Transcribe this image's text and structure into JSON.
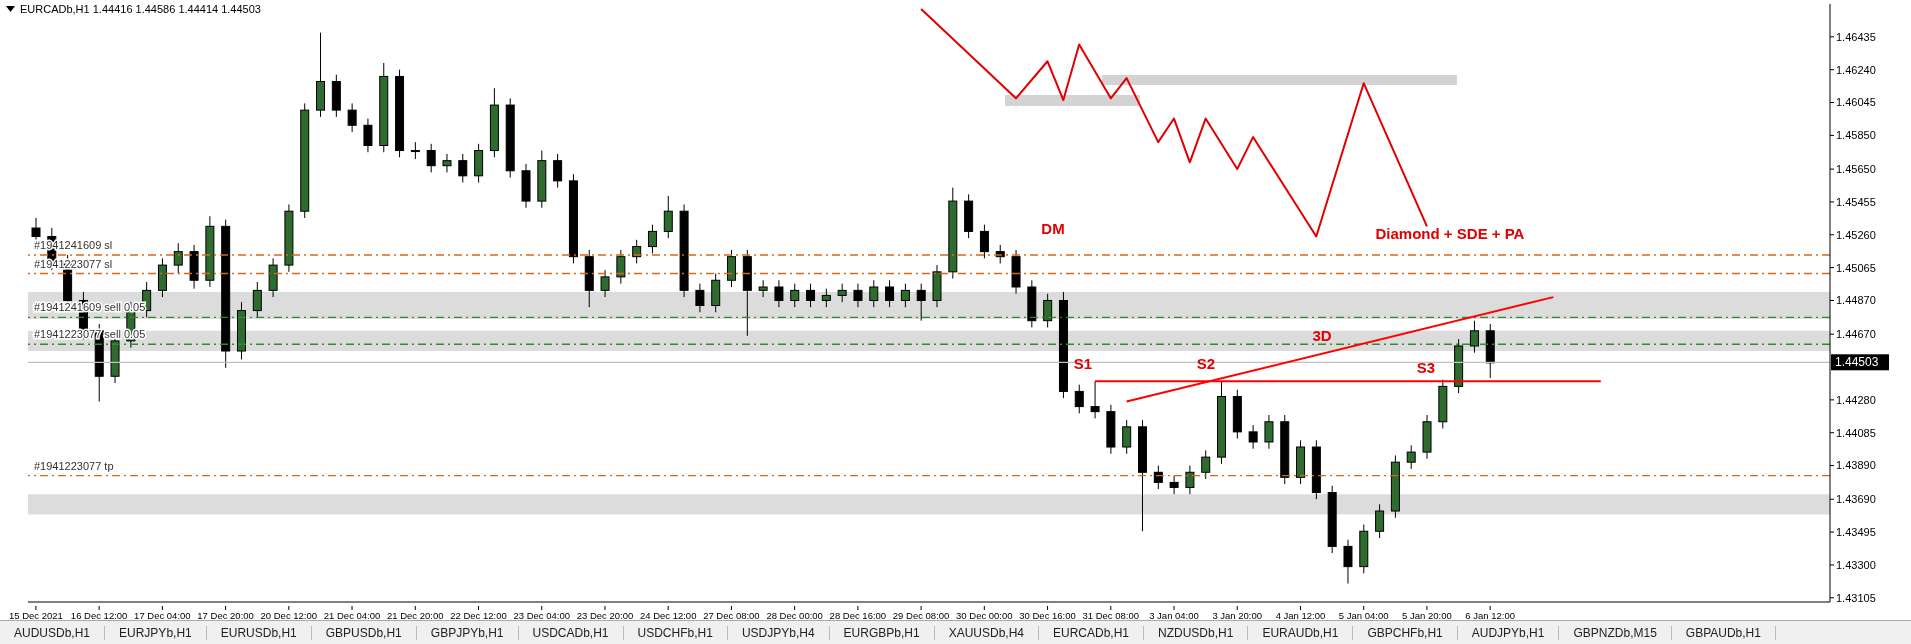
{
  "chart_data": {
    "type": "candlestick",
    "title": "EURCADb,H1  1.44416 1.44586 1.44414 1.44503",
    "categories": [
      "15 Dec 2021",
      null,
      null,
      null,
      "16 Dec 12:00",
      null,
      null,
      null,
      "17 Dec 04:00",
      null,
      null,
      null,
      "17 Dec 20:00",
      null,
      null,
      null,
      "20 Dec 12:00",
      null,
      null,
      null,
      "21 Dec 04:00",
      null,
      null,
      null,
      "21 Dec 20:00",
      null,
      null,
      null,
      "22 Dec 12:00",
      null,
      null,
      null,
      "23 Dec 04:00",
      null,
      null,
      null,
      "23 Dec 20:00",
      null,
      null,
      null,
      "24 Dec 12:00",
      null,
      null,
      null,
      "27 Dec 08:00",
      null,
      null,
      null,
      "28 Dec 00:00",
      null,
      null,
      null,
      "28 Dec 16:00",
      null,
      null,
      null,
      "29 Dec 08:00",
      null,
      null,
      null,
      "30 Dec 00:00",
      null,
      null,
      null,
      "30 Dec 16:00",
      null,
      null,
      null,
      "31 Dec 08:00",
      null,
      null,
      null,
      "3 Jan 04:00",
      null,
      null,
      null,
      "3 Jan 20:00",
      null,
      null,
      null,
      "4 Jan 12:00",
      null,
      null,
      null,
      "5 Jan 04:00",
      null,
      null,
      null,
      "5 Jan 20:00",
      null,
      null,
      null,
      "6 Jan 12:00",
      null,
      null,
      null,
      null,
      null,
      null,
      null,
      null,
      null,
      null,
      null,
      null,
      null,
      null,
      null,
      null,
      null,
      null,
      null,
      null,
      null
    ],
    "ohlc": [
      [
        1.453,
        1.4536,
        1.452,
        1.4525
      ],
      [
        1.4525,
        1.453,
        1.4505,
        1.451
      ],
      [
        1.451,
        1.4514,
        1.4482,
        1.4487
      ],
      [
        1.4487,
        1.4492,
        1.4464,
        1.4469
      ],
      [
        1.4469,
        1.4473,
        1.4427,
        1.4442
      ],
      [
        1.4442,
        1.4468,
        1.4438,
        1.4463
      ],
      [
        1.4463,
        1.4486,
        1.4459,
        1.4481
      ],
      [
        1.4481,
        1.4498,
        1.4477,
        1.4493
      ],
      [
        1.4493,
        1.4512,
        1.4489,
        1.4508
      ],
      [
        1.4508,
        1.4521,
        1.4503,
        1.4516
      ],
      [
        1.4516,
        1.452,
        1.4494,
        1.4499
      ],
      [
        1.4499,
        1.4537,
        1.4495,
        1.4531
      ],
      [
        1.4531,
        1.4535,
        1.4447,
        1.4457
      ],
      [
        1.4457,
        1.4486,
        1.4452,
        1.4481
      ],
      [
        1.4481,
        1.4498,
        1.4477,
        1.4493
      ],
      [
        1.4493,
        1.4512,
        1.4489,
        1.4508
      ],
      [
        1.4508,
        1.4544,
        1.4504,
        1.454
      ],
      [
        1.454,
        1.4604,
        1.4536,
        1.46
      ],
      [
        1.46,
        1.4646,
        1.4596,
        1.4617
      ],
      [
        1.4617,
        1.4621,
        1.4596,
        1.46
      ],
      [
        1.46,
        1.4604,
        1.4587,
        1.4591
      ],
      [
        1.4591,
        1.4595,
        1.4575,
        1.4579
      ],
      [
        1.4579,
        1.4628,
        1.4575,
        1.462
      ],
      [
        1.462,
        1.4624,
        1.4572,
        1.4576
      ],
      [
        1.4576,
        1.4581,
        1.4571,
        1.4576
      ],
      [
        1.4576,
        1.458,
        1.4563,
        1.4567
      ],
      [
        1.4567,
        1.4574,
        1.4563,
        1.457
      ],
      [
        1.457,
        1.4574,
        1.4557,
        1.4561
      ],
      [
        1.4561,
        1.458,
        1.4557,
        1.4576
      ],
      [
        1.4576,
        1.4613,
        1.4572,
        1.4603
      ],
      [
        1.4603,
        1.4607,
        1.456,
        1.4564
      ],
      [
        1.4564,
        1.4568,
        1.4542,
        1.4546
      ],
      [
        1.4546,
        1.4576,
        1.4542,
        1.457
      ],
      [
        1.457,
        1.4574,
        1.4554,
        1.4558
      ],
      [
        1.4558,
        1.4562,
        1.4509,
        1.4513
      ],
      [
        1.4513,
        1.4517,
        1.4483,
        1.4493
      ],
      [
        1.4493,
        1.4505,
        1.4489,
        1.4501
      ],
      [
        1.4501,
        1.4517,
        1.4497,
        1.4513
      ],
      [
        1.4513,
        1.4523,
        1.4509,
        1.4519
      ],
      [
        1.4519,
        1.4532,
        1.4515,
        1.4528
      ],
      [
        1.4528,
        1.4549,
        1.4524,
        1.454
      ],
      [
        1.454,
        1.4544,
        1.4489,
        1.4493
      ],
      [
        1.4493,
        1.4497,
        1.448,
        1.4484
      ],
      [
        1.4484,
        1.4503,
        1.448,
        1.4499
      ],
      [
        1.4499,
        1.4517,
        1.4495,
        1.4513
      ],
      [
        1.4513,
        1.4517,
        1.4466,
        1.4493
      ],
      [
        1.4493,
        1.4499,
        1.4489,
        1.4495
      ],
      [
        1.4495,
        1.4499,
        1.4483,
        1.4487
      ],
      [
        1.4487,
        1.4497,
        1.4483,
        1.4493
      ],
      [
        1.4493,
        1.4497,
        1.4483,
        1.4487
      ],
      [
        1.4487,
        1.4494,
        1.4483,
        1.449
      ],
      [
        1.449,
        1.4497,
        1.4486,
        1.4493
      ],
      [
        1.4493,
        1.4497,
        1.4483,
        1.4487
      ],
      [
        1.4487,
        1.4499,
        1.4483,
        1.4495
      ],
      [
        1.4495,
        1.4499,
        1.4483,
        1.4487
      ],
      [
        1.4487,
        1.4497,
        1.4483,
        1.4493
      ],
      [
        1.4493,
        1.4497,
        1.4475,
        1.4487
      ],
      [
        1.4487,
        1.4508,
        1.4483,
        1.4504
      ],
      [
        1.4504,
        1.4554,
        1.45,
        1.4546
      ],
      [
        1.4546,
        1.455,
        1.4524,
        1.4528
      ],
      [
        1.4528,
        1.4532,
        1.4512,
        1.4516
      ],
      [
        1.4516,
        1.452,
        1.4509,
        1.4513
      ],
      [
        1.4513,
        1.4517,
        1.4491,
        1.4495
      ],
      [
        1.4495,
        1.4499,
        1.4471,
        1.4475
      ],
      [
        1.4475,
        1.4491,
        1.4471,
        1.4487
      ],
      [
        1.4487,
        1.4492,
        1.4429,
        1.4433
      ],
      [
        1.4433,
        1.4437,
        1.442,
        1.4424
      ],
      [
        1.4424,
        1.4439,
        1.4417,
        1.4421
      ],
      [
        1.4421,
        1.4425,
        1.4396,
        1.44
      ],
      [
        1.44,
        1.4416,
        1.4396,
        1.4412
      ],
      [
        1.4412,
        1.4416,
        1.435,
        1.4385
      ],
      [
        1.4385,
        1.4389,
        1.4375,
        1.4379
      ],
      [
        1.4379,
        1.4383,
        1.4372,
        1.4376
      ],
      [
        1.4376,
        1.4389,
        1.4372,
        1.4385
      ],
      [
        1.4385,
        1.4398,
        1.4381,
        1.4394
      ],
      [
        1.4394,
        1.4439,
        1.439,
        1.443
      ],
      [
        1.443,
        1.4434,
        1.4405,
        1.4409
      ],
      [
        1.4409,
        1.4413,
        1.4399,
        1.4403
      ],
      [
        1.4403,
        1.4419,
        1.4399,
        1.4415
      ],
      [
        1.4415,
        1.4419,
        1.4378,
        1.4382
      ],
      [
        1.4382,
        1.4404,
        1.4378,
        1.44
      ],
      [
        1.44,
        1.4404,
        1.4369,
        1.4373
      ],
      [
        1.4373,
        1.4377,
        1.4337,
        1.4341
      ],
      [
        1.4341,
        1.4345,
        1.4319,
        1.4329
      ],
      [
        1.4329,
        1.4354,
        1.4325,
        1.435
      ],
      [
        1.435,
        1.4366,
        1.4346,
        1.4362
      ],
      [
        1.4362,
        1.4395,
        1.4358,
        1.4391
      ],
      [
        1.4391,
        1.4401,
        1.4387,
        1.4397
      ],
      [
        1.4397,
        1.4419,
        1.4393,
        1.4415
      ],
      [
        1.4415,
        1.444,
        1.4411,
        1.4436
      ],
      [
        1.4436,
        1.4464,
        1.4432,
        1.446
      ],
      [
        1.446,
        1.4475,
        1.4456,
        1.4469
      ],
      [
        1.4469,
        1.4473,
        1.4441,
        1.445
      ],
      null,
      null,
      null,
      null,
      null,
      null,
      null,
      null,
      null,
      null,
      null,
      null,
      null,
      null,
      null,
      null,
      null,
      null,
      null,
      null,
      null
    ],
    "ylim": [
      1.4308,
      1.4663
    ],
    "yticks": [
      1.46435,
      {
        "value": 1.4624,
        "label": "1.46240"
      },
      1.46045,
      {
        "value": 1.4585,
        "label": "1.45850"
      },
      {
        "value": 1.4565,
        "label": "1.45650"
      },
      1.45455,
      {
        "value": 1.4526,
        "label": "1.45260"
      },
      1.45065,
      {
        "value": 1.4487,
        "label": "1.44870"
      },
      {
        "value": 1.4467,
        "label": "1.44670"
      },
      {
        "value": 1.4428,
        "label": "1.44280"
      },
      1.44085,
      {
        "value": 1.4389,
        "label": "1.43890"
      },
      {
        "value": 1.4369,
        "label": "1.43690"
      },
      1.43495,
      {
        "value": 1.433,
        "label": "1.43300"
      },
      1.43105
    ],
    "series": [
      {
        "type": "line",
        "color": "#ff0000",
        "values": [
          null,
          null,
          null,
          null,
          null,
          null,
          null,
          null,
          null,
          null,
          null,
          null,
          null,
          null,
          null,
          null,
          null,
          null,
          null,
          null,
          null,
          null,
          null,
          null,
          null,
          null,
          null,
          null,
          null,
          null,
          null,
          null,
          null,
          null,
          null,
          null,
          null,
          null,
          null,
          null,
          null,
          null,
          null,
          null,
          null,
          null,
          null,
          null,
          null,
          null,
          null,
          null,
          null,
          null,
          null,
          null,
          null,
          null,
          null,
          null,
          null,
          null,
          null,
          null,
          null,
          null,
          null,
          1.4439,
          1.4439,
          1.4439,
          1.4439,
          1.4439,
          1.4439,
          1.4439,
          1.4439,
          1.4439,
          1.4439,
          1.4439,
          1.4439,
          1.4439,
          1.4439,
          1.4439,
          1.4439,
          1.4439,
          1.4439,
          1.4439,
          1.4439,
          1.4439,
          1.4439,
          1.4439,
          1.4439,
          1.4439,
          1.4439,
          1.4439,
          1.4439,
          1.4439,
          1.4439,
          1.4439,
          1.4439,
          1.4439,
          null,
          null,
          null,
          null,
          null,
          null,
          null,
          null,
          null,
          null,
          null,
          null,
          null,
          null
        ]
      },
      {
        "type": "line",
        "color": "#ff0000",
        "values": [
          null,
          null,
          null,
          null,
          null,
          null,
          null,
          null,
          null,
          null,
          null,
          null,
          null,
          null,
          null,
          null,
          null,
          null,
          null,
          null,
          null,
          null,
          null,
          null,
          null,
          null,
          null,
          null,
          null,
          null,
          null,
          null,
          null,
          null,
          null,
          null,
          null,
          null,
          null,
          null,
          null,
          null,
          null,
          null,
          null,
          null,
          null,
          null,
          null,
          null,
          null,
          null,
          null,
          null,
          null,
          null,
          null,
          null,
          null,
          null,
          null,
          null,
          null,
          null,
          null,
          null,
          null,
          null,
          null,
          1.4427,
          null,
          null,
          null,
          null,
          null,
          null,
          null,
          null,
          null,
          null,
          null,
          null,
          null,
          null,
          null,
          null,
          null,
          null,
          null,
          null,
          null,
          null,
          null,
          null,
          null,
          null,
          1.4489,
          null,
          null,
          null,
          null,
          null,
          null,
          null,
          null,
          null,
          null,
          null,
          null,
          null,
          null,
          null,
          null,
          null
        ]
      },
      {
        "type": "line",
        "color": "#e00000",
        "values": [
          null,
          null,
          null,
          null,
          null,
          null,
          null,
          null,
          null,
          null,
          null,
          null,
          null,
          null,
          null,
          null,
          null,
          null,
          null,
          null,
          null,
          null,
          null,
          null,
          null,
          null,
          null,
          null,
          null,
          null,
          null,
          null,
          null,
          null,
          null,
          null,
          null,
          null,
          null,
          null,
          null,
          null,
          null,
          null,
          null,
          null,
          null,
          null,
          null,
          null,
          null,
          null,
          null,
          null,
          null,
          null,
          1.466,
          null,
          null,
          null,
          null,
          null,
          1.4607,
          null,
          1.4629,
          1.4606,
          1.4639,
          null,
          1.4607,
          1.4619,
          null,
          1.4581,
          1.4595,
          1.4569,
          1.4595,
          null,
          1.4565,
          1.4584,
          null,
          null,
          null,
          1.4525,
          null,
          null,
          1.4616,
          null,
          null,
          null,
          1.4531,
          null,
          null,
          null,
          null,
          null,
          null,
          null,
          null,
          null,
          null,
          null,
          null,
          null,
          null,
          null,
          null,
          null,
          null,
          null,
          null,
          null,
          null,
          null,
          null,
          null
        ]
      }
    ],
    "ref_lines": [
      {
        "axis": "y",
        "value": 1.4514,
        "label": "#1941241609 sl",
        "color": "#d2691e",
        "line_style": "dashed"
      },
      {
        "axis": "y",
        "value": 1.4503,
        "label": "#1941223077 sl",
        "color": "#d2691e",
        "line_style": "dashed"
      },
      {
        "axis": "y",
        "value": 1.4477,
        "label": "#1941241609 sell 0.05",
        "color": "#2e8b2e",
        "line_style": "dashed"
      },
      {
        "axis": "y",
        "value": 1.4461,
        "label": "#1941223077 sell 0.05",
        "color": "#2e8b2e",
        "line_style": "dashed"
      },
      {
        "axis": "y",
        "value": 1.4383,
        "label": "#1941223077 tp",
        "color": "#d2691e",
        "line_style": "dashed"
      },
      {
        "axis": "y",
        "value": 1.44503,
        "label": "1.44503",
        "color": "#c0c0c0",
        "line_style": "solid"
      }
    ],
    "bands": [
      {
        "axis": "y",
        "from": 1.4476,
        "to": 1.4492,
        "color": "#dcdcdc"
      },
      {
        "axis": "y",
        "from": 1.4457,
        "to": 1.4469,
        "color": "#dcdcdc"
      },
      {
        "axis": "y",
        "from": 1.436,
        "to": 1.4372,
        "color": "#dcdcdc"
      }
    ],
    "annotations": [
      "DM",
      "S1",
      "S2",
      "3D",
      "S3",
      "Diamond + SDE + PA",
      "AUDUSDb,H1",
      "EURJPYb,H1",
      "EURUSDb,H1",
      "GBPUSDb,H1",
      "GBPJPYb,H1",
      "USDCADb,H1",
      "USDCHFb,H1",
      "USDJPYb,H4",
      "EURGBPb,H1",
      "XAUUSDb,H4",
      "EURCADb,H1",
      "NZDUSDb,H1",
      "EURAUDb,H1",
      "GBPCHFb,H1",
      "AUDJPYb,H1",
      "GBPNZDb,M15",
      "GBPAUDb,H1"
    ]
  }
}
